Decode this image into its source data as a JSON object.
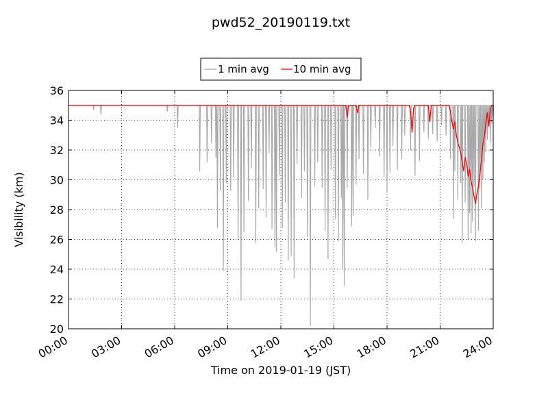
{
  "chart_data": {
    "type": "line",
    "title": "pwd52_20190119.txt",
    "xlabel": "Time on 2019-01-19 (JST)",
    "ylabel": "Visibility (km)",
    "xlim": [
      "00:00",
      "24:00"
    ],
    "ylim": [
      20,
      36
    ],
    "x_ticks": [
      "00:00",
      "03:00",
      "06:00",
      "09:00",
      "12:00",
      "15:00",
      "18:00",
      "21:00",
      "24:00"
    ],
    "y_ticks": [
      "20",
      "22",
      "24",
      "26",
      "28",
      "30",
      "32",
      "34",
      "36"
    ],
    "grid": true,
    "legend_position": "top-center",
    "legend": [
      "1 min avg",
      "10 min avg"
    ],
    "series": [
      {
        "name": "1 min avg",
        "color": "#a9a9a9",
        "baseline_km": 35.0,
        "dips": [
          [
            "01:25",
            34.7
          ],
          [
            "01:50",
            34.4
          ],
          [
            "05:35",
            34.6
          ],
          [
            "06:10",
            33.5
          ],
          [
            "07:25",
            30.6
          ],
          [
            "07:50",
            31.2
          ],
          [
            "08:05",
            32.5
          ],
          [
            "08:20",
            31.5
          ],
          [
            "08:25",
            26.8
          ],
          [
            "08:35",
            29.3
          ],
          [
            "08:45",
            23.9
          ],
          [
            "08:55",
            29.8
          ],
          [
            "09:10",
            29.3
          ],
          [
            "09:20",
            30.2
          ],
          [
            "09:35",
            26.0
          ],
          [
            "09:45",
            21.9
          ],
          [
            "09:55",
            26.5
          ],
          [
            "10:10",
            28.6
          ],
          [
            "10:20",
            30.8
          ],
          [
            "10:35",
            25.8
          ],
          [
            "10:45",
            28.1
          ],
          [
            "11:00",
            29.4
          ],
          [
            "11:10",
            27.5
          ],
          [
            "11:20",
            31.8
          ],
          [
            "11:30",
            26.7
          ],
          [
            "11:40",
            25.5
          ],
          [
            "11:45",
            25.2
          ],
          [
            "11:55",
            30.3
          ],
          [
            "12:05",
            26.8
          ],
          [
            "12:15",
            28.5
          ],
          [
            "12:25",
            24.6
          ],
          [
            "12:35",
            24.9
          ],
          [
            "12:45",
            23.4
          ],
          [
            "12:55",
            31.1
          ],
          [
            "13:10",
            28.8
          ],
          [
            "13:20",
            30.6
          ],
          [
            "13:30",
            26.2
          ],
          [
            "13:40",
            20.2
          ],
          [
            "13:55",
            29.6
          ],
          [
            "14:05",
            31.2
          ],
          [
            "14:20",
            29.5
          ],
          [
            "14:30",
            26.6
          ],
          [
            "14:40",
            24.7
          ],
          [
            "14:50",
            30.7
          ],
          [
            "15:05",
            27.4
          ],
          [
            "15:15",
            25.9
          ],
          [
            "15:25",
            28.8
          ],
          [
            "15:30",
            24.0
          ],
          [
            "15:35",
            22.9
          ],
          [
            "15:45",
            29.5
          ],
          [
            "16:00",
            26.9
          ],
          [
            "16:05",
            27.6
          ],
          [
            "16:15",
            29.7
          ],
          [
            "16:25",
            31.4
          ],
          [
            "16:40",
            30.4
          ],
          [
            "16:55",
            28.7
          ],
          [
            "17:05",
            32.2
          ],
          [
            "17:20",
            33.5
          ],
          [
            "17:35",
            31.6
          ],
          [
            "17:50",
            30.2
          ],
          [
            "18:00",
            29.2
          ],
          [
            "18:10",
            30.5
          ],
          [
            "18:20",
            32.3
          ],
          [
            "18:35",
            30.7
          ],
          [
            "18:50",
            31.4
          ],
          [
            "19:00",
            33.0
          ],
          [
            "19:20",
            32.0
          ],
          [
            "19:35",
            30.3
          ],
          [
            "19:50",
            31.3
          ],
          [
            "20:05",
            33.2
          ],
          [
            "20:20",
            32.8
          ],
          [
            "20:35",
            33.1
          ],
          [
            "20:50",
            32.6
          ],
          [
            "21:05",
            33.7
          ],
          [
            "21:20",
            33.0
          ],
          [
            "21:35",
            31.4
          ],
          [
            "21:45",
            27.4
          ],
          [
            "21:50",
            30.6
          ],
          [
            "22:00",
            28.7
          ],
          [
            "22:10",
            29.8
          ],
          [
            "22:15",
            25.8
          ],
          [
            "22:25",
            28.5
          ],
          [
            "22:35",
            26.0
          ],
          [
            "22:40",
            27.8
          ],
          [
            "22:45",
            26.4
          ],
          [
            "22:50",
            27.2
          ],
          [
            "22:55",
            29.6
          ],
          [
            "23:00",
            25.9
          ],
          [
            "23:10",
            26.6
          ],
          [
            "23:15",
            29.4
          ],
          [
            "23:20",
            28.1
          ],
          [
            "23:25",
            30.0
          ],
          [
            "23:30",
            31.2
          ],
          [
            "23:35",
            31.9
          ],
          [
            "23:40",
            32.7
          ],
          [
            "23:45",
            33.6
          ],
          [
            "23:50",
            32.5
          ],
          [
            "23:55",
            33.8
          ],
          [
            "24:00",
            34.2
          ]
        ]
      },
      {
        "name": "10 min avg",
        "color": "#ff0000",
        "points": [
          [
            "00:00",
            35.0
          ],
          [
            "15:40",
            35.0
          ],
          [
            "15:45",
            34.2
          ],
          [
            "15:50",
            35.0
          ],
          [
            "16:15",
            35.0
          ],
          [
            "16:20",
            34.5
          ],
          [
            "16:25",
            35.0
          ],
          [
            "19:15",
            35.0
          ],
          [
            "19:20",
            34.6
          ],
          [
            "19:25",
            33.2
          ],
          [
            "19:30",
            34.8
          ],
          [
            "19:35",
            35.0
          ],
          [
            "20:20",
            35.0
          ],
          [
            "20:25",
            33.9
          ],
          [
            "20:30",
            35.0
          ],
          [
            "21:30",
            35.0
          ],
          [
            "21:35",
            34.6
          ],
          [
            "21:40",
            33.9
          ],
          [
            "21:45",
            33.4
          ],
          [
            "21:50",
            33.9
          ],
          [
            "21:55",
            33.0
          ],
          [
            "22:00",
            32.5
          ],
          [
            "22:05",
            32.2
          ],
          [
            "22:10",
            31.8
          ],
          [
            "22:15",
            31.2
          ],
          [
            "22:20",
            30.6
          ],
          [
            "22:25",
            31.5
          ],
          [
            "22:30",
            31.1
          ],
          [
            "22:35",
            30.2
          ],
          [
            "22:40",
            30.7
          ],
          [
            "22:45",
            29.9
          ],
          [
            "22:50",
            29.5
          ],
          [
            "22:55",
            28.9
          ],
          [
            "23:00",
            28.4
          ],
          [
            "23:05",
            29.1
          ],
          [
            "23:10",
            29.6
          ],
          [
            "23:15",
            30.4
          ],
          [
            "23:20",
            31.3
          ],
          [
            "23:25",
            32.4
          ],
          [
            "23:30",
            32.9
          ],
          [
            "23:35",
            33.8
          ],
          [
            "23:40",
            34.5
          ],
          [
            "23:45",
            33.6
          ],
          [
            "23:50",
            34.7
          ],
          [
            "23:55",
            35.0
          ],
          [
            "24:00",
            35.0
          ]
        ]
      }
    ]
  }
}
